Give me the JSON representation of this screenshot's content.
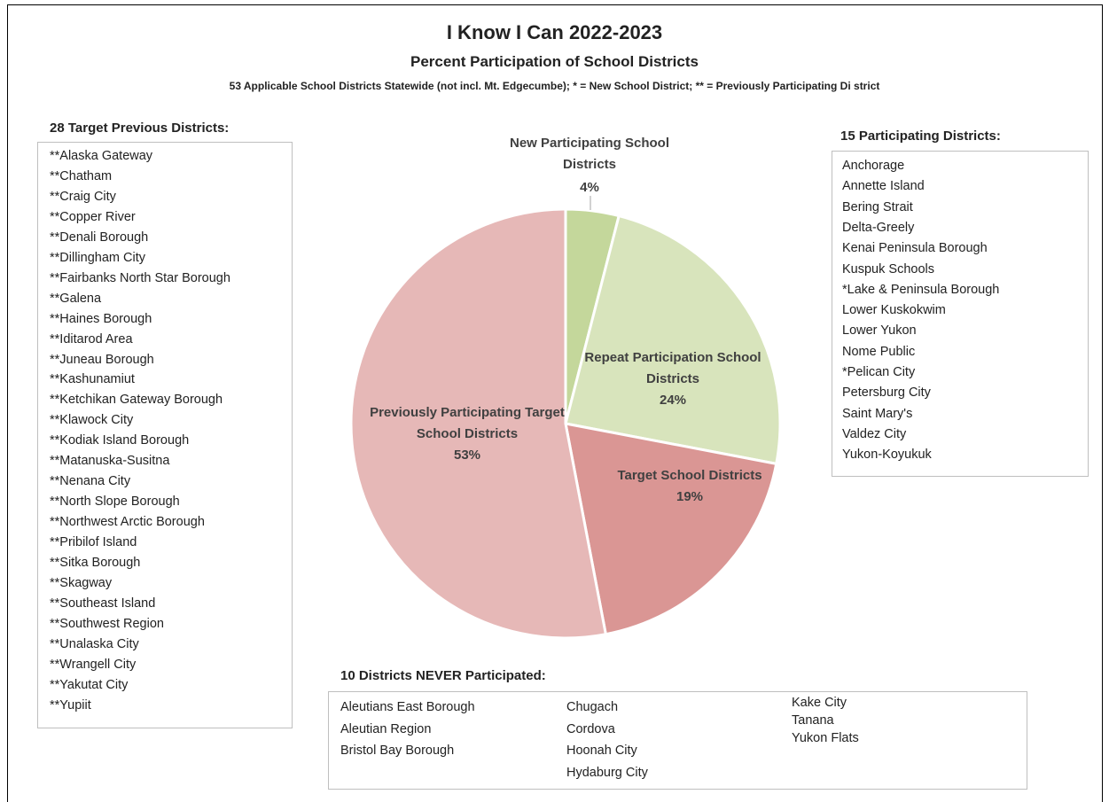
{
  "chart_data": {
    "type": "pie",
    "title": "I Know I Can 2022-2023",
    "subtitle": "Percent Participation of School Districts",
    "note": "53 Applicable School Districts Statewide (not incl. Mt. Edgecumbe); * = New School District; ** = Previously Participating Di strict",
    "categories": [
      "New Participating School Districts",
      "Repeat Participation School Districts",
      "Target School Districts",
      "Previously Participating Target School Districts"
    ],
    "values": [
      4,
      24,
      19,
      53
    ],
    "value_labels": [
      "4%",
      "24%",
      "19%",
      "53%"
    ],
    "colors": [
      "#c4d79b",
      "#d8e4bc",
      "#da9694",
      "#e6b8b7"
    ]
  },
  "lists": [
    {
      "title": "28 Target Previous Districts:",
      "columns": [
        [
          "**Alaska Gateway",
          "**Chatham",
          "**Craig City",
          "**Copper River",
          "**Denali Borough",
          "**Dillingham City",
          "**Fairbanks North Star Borough",
          "**Galena",
          "**Haines Borough",
          "**Iditarod Area",
          "**Juneau Borough",
          "**Kashunamiut",
          "**Ketchikan Gateway Borough",
          "**Klawock City",
          "**Kodiak Island Borough",
          "**Matanuska-Susitna",
          "**Nenana City",
          "**North Slope Borough",
          "**Northwest Arctic Borough",
          "**Pribilof Island",
          "**Sitka Borough",
          "**Skagway",
          "**Southeast Island",
          "**Southwest Region",
          "**Unalaska City",
          "**Wrangell City",
          "**Yakutat City",
          "**Yupiit"
        ]
      ]
    },
    {
      "title": "15 Participating Districts:",
      "columns": [
        [
          "Anchorage",
          "Annette Island",
          "Bering Strait",
          "Delta-Greely",
          "Kenai Peninsula Borough",
          "Kuspuk Schools",
          "*Lake & Peninsula Borough",
          "Lower Kuskokwim",
          "Lower Yukon",
          "Nome Public",
          "*Pelican City",
          "Petersburg City",
          "Saint Mary's",
          "Valdez City",
          "Yukon-Koyukuk"
        ]
      ]
    },
    {
      "title": "10 Districts NEVER Participated:",
      "columns": [
        [
          "Aleutians East Borough",
          "Aleutian Region",
          "Bristol Bay Borough"
        ],
        [
          "Chugach",
          "Cordova",
          "Hoonah City",
          "Hydaburg City"
        ],
        [
          "Kake City",
          "Tanana",
          "Yukon Flats"
        ]
      ]
    }
  ]
}
